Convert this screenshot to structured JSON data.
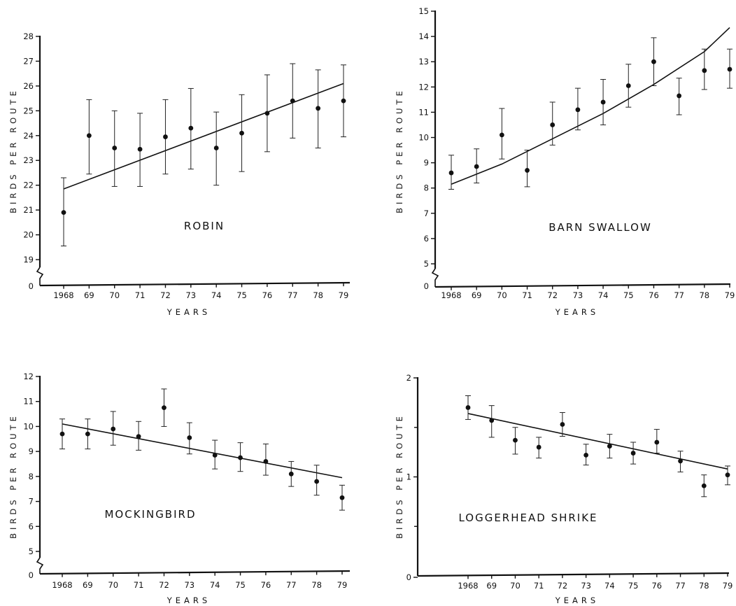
{
  "chart_data": [
    {
      "type": "scatter",
      "title": "ROBIN",
      "xlabel": "YEARS",
      "ylabel": "BIRDS PER ROUTE",
      "x_tick_labels": [
        "1968",
        "69",
        "70",
        "71",
        "72",
        "73",
        "74",
        "75",
        "76",
        "77",
        "78",
        "79"
      ],
      "y_ticks": [
        19,
        20,
        21,
        22,
        23,
        24,
        25,
        26,
        27,
        28
      ],
      "y_zero_label": "0",
      "axis_break": true,
      "ylim": [
        19,
        28
      ],
      "series": [
        {
          "x": [
            1968,
            1969,
            1970,
            1971,
            1972,
            1973,
            1974,
            1975,
            1976,
            1977,
            1978,
            1979
          ],
          "y": [
            20.9,
            24.0,
            23.5,
            23.45,
            23.95,
            24.3,
            23.5,
            24.1,
            24.9,
            25.4,
            25.1,
            25.4
          ],
          "err_low": [
            19.55,
            22.45,
            21.95,
            21.95,
            22.45,
            22.65,
            22.0,
            22.55,
            23.35,
            23.9,
            23.5,
            23.95
          ],
          "err_high": [
            22.3,
            25.45,
            25.0,
            24.9,
            25.45,
            25.9,
            24.95,
            25.65,
            26.45,
            26.9,
            26.65,
            26.85
          ]
        }
      ],
      "trend": {
        "type": "linear",
        "x": [
          1968,
          1979
        ],
        "y": [
          21.85,
          26.1
        ]
      }
    },
    {
      "type": "scatter",
      "title": "BARN  SWALLOW",
      "xlabel": "YEARS",
      "ylabel": "BIRDS PER ROUTE",
      "x_tick_labels": [
        "1968",
        "69",
        "70",
        "71",
        "72",
        "73",
        "74",
        "75",
        "76",
        "77",
        "78",
        "79"
      ],
      "y_ticks": [
        5,
        6,
        7,
        8,
        9,
        10,
        11,
        12,
        13,
        14,
        15
      ],
      "y_zero_label": "0",
      "axis_break": true,
      "ylim": [
        5,
        15
      ],
      "series": [
        {
          "x": [
            1968,
            1969,
            1970,
            1971,
            1972,
            1973,
            1974,
            1975,
            1976,
            1977,
            1978,
            1979
          ],
          "y": [
            8.6,
            8.85,
            10.1,
            8.7,
            10.5,
            11.1,
            11.4,
            12.05,
            13.0,
            11.65,
            12.65,
            12.7
          ],
          "err_low": [
            7.95,
            8.2,
            9.15,
            8.05,
            9.7,
            10.3,
            10.5,
            11.2,
            12.05,
            10.9,
            11.9,
            11.95
          ],
          "err_high": [
            9.3,
            9.55,
            11.15,
            9.5,
            11.4,
            11.95,
            12.3,
            12.9,
            13.95,
            12.35,
            13.5,
            13.5
          ]
        }
      ],
      "trend": {
        "type": "curve",
        "x": [
          1968,
          1970,
          1972,
          1974,
          1976,
          1978,
          1979
        ],
        "y": [
          8.15,
          8.95,
          9.95,
          10.95,
          12.1,
          13.4,
          14.35
        ]
      }
    },
    {
      "type": "scatter",
      "title": "MOCKINGBIRD",
      "xlabel": "YEARS",
      "ylabel": "BIRDS PER ROUTE",
      "x_tick_labels": [
        "1968",
        "69",
        "70",
        "71",
        "72",
        "73",
        "74",
        "75",
        "76",
        "77",
        "78",
        "79"
      ],
      "y_ticks": [
        5,
        6,
        7,
        8,
        9,
        10,
        11,
        12
      ],
      "y_zero_label": "0",
      "axis_break": true,
      "ylim": [
        5,
        12
      ],
      "series": [
        {
          "x": [
            1968,
            1969,
            1970,
            1971,
            1972,
            1973,
            1974,
            1975,
            1976,
            1977,
            1978,
            1979
          ],
          "y": [
            9.7,
            9.7,
            9.9,
            9.6,
            10.75,
            9.55,
            8.85,
            8.75,
            8.6,
            8.1,
            7.8,
            7.15
          ],
          "err_low": [
            9.1,
            9.1,
            9.25,
            9.05,
            10.0,
            8.9,
            8.3,
            8.2,
            8.05,
            7.6,
            7.25,
            6.65
          ],
          "err_high": [
            10.3,
            10.3,
            10.6,
            10.2,
            11.5,
            10.15,
            9.45,
            9.35,
            9.3,
            8.6,
            8.45,
            7.65
          ]
        }
      ],
      "trend": {
        "type": "linear",
        "x": [
          1968,
          1979
        ],
        "y": [
          10.1,
          7.95
        ]
      }
    },
    {
      "type": "scatter",
      "title": "LOGGERHEAD  SHRIKE",
      "xlabel": "YEARS",
      "ylabel": "BIRDS PER ROUTE",
      "x_tick_labels": [
        "1968",
        "69",
        "70",
        "71",
        "72",
        "73",
        "74",
        "75",
        "76",
        "77",
        "78",
        "79"
      ],
      "y_ticks": [
        0,
        1,
        2
      ],
      "y_tick_labels": [
        "0",
        "1",
        "2"
      ],
      "y_minor_ticks": [
        0.5,
        1.5
      ],
      "axis_break": false,
      "ylim": [
        0,
        2
      ],
      "series": [
        {
          "x": [
            1968,
            1969,
            1970,
            1971,
            1972,
            1973,
            1974,
            1975,
            1976,
            1977,
            1978,
            1979
          ],
          "y": [
            1.7,
            1.57,
            1.37,
            1.3,
            1.53,
            1.22,
            1.31,
            1.24,
            1.35,
            1.16,
            0.91,
            1.02
          ],
          "err_low": [
            1.58,
            1.4,
            1.23,
            1.19,
            1.41,
            1.12,
            1.19,
            1.13,
            1.24,
            1.05,
            0.8,
            0.92
          ],
          "err_high": [
            1.82,
            1.72,
            1.5,
            1.4,
            1.65,
            1.33,
            1.43,
            1.35,
            1.48,
            1.26,
            1.02,
            1.11
          ]
        }
      ],
      "trend": {
        "type": "linear",
        "x": [
          1968,
          1979
        ],
        "y": [
          1.64,
          1.08
        ]
      }
    }
  ]
}
